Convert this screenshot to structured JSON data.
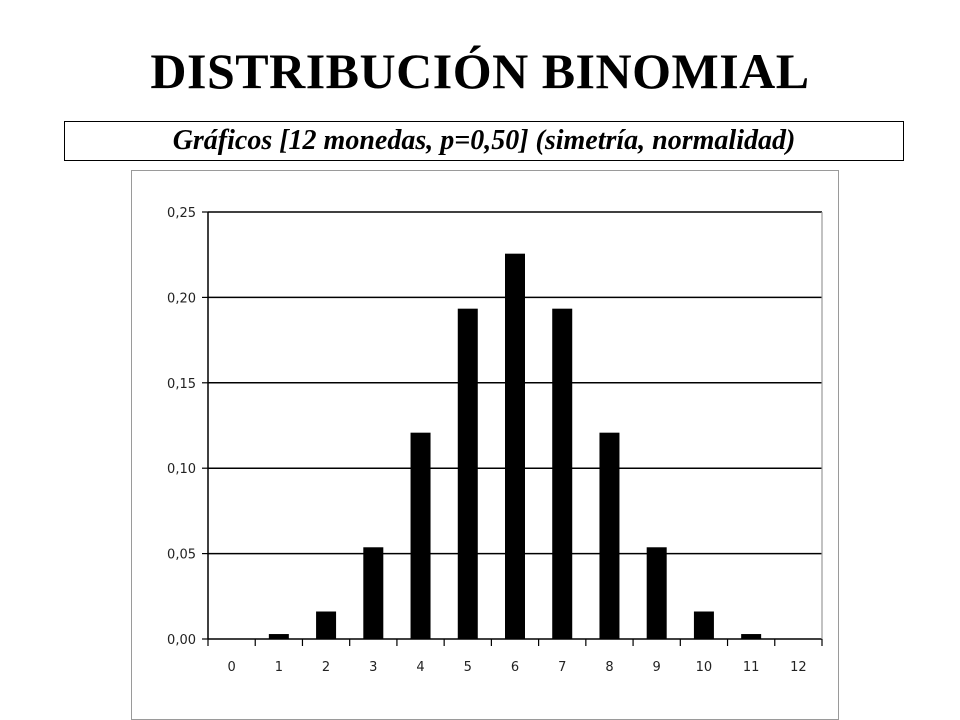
{
  "header": {
    "title": "DISTRIBUCIÓN BINOMIAL",
    "subtitle": "Gráficos [12 monedas, p=0,50] (simetría, normalidad)"
  },
  "chart_data": {
    "type": "bar",
    "categories": [
      "0",
      "1",
      "2",
      "3",
      "4",
      "5",
      "6",
      "7",
      "8",
      "9",
      "10",
      "11",
      "12"
    ],
    "values": [
      0.0002,
      0.0029,
      0.0161,
      0.0537,
      0.1208,
      0.1934,
      0.2256,
      0.1934,
      0.1208,
      0.0537,
      0.0161,
      0.0029,
      0.0002
    ],
    "ylim": [
      0,
      0.25
    ],
    "yticks": [
      0,
      0.05,
      0.1,
      0.15,
      0.2,
      0.25
    ],
    "ytick_labels": [
      "0,00",
      "0,05",
      "0,10",
      "0,15",
      "0,20",
      "0,25"
    ],
    "grid": true,
    "bar_color": "#000000",
    "grid_color": "#000000"
  }
}
